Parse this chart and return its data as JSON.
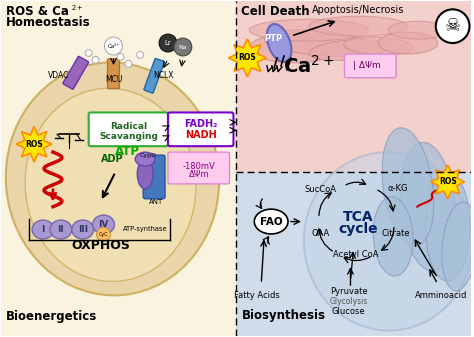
{
  "bg_color": "#ffffff",
  "left_bg": "#faf3e0",
  "right_top_bg": "#f2d0cc",
  "right_bot_bg": "#d0dcea",
  "mito_outer_color": "#e8cfa0",
  "mito_inner_color": "#f2e4b8",
  "mito_right_color": "#b8cce0",
  "label_homeostasis": "ROS & Ca",
  "label_homeostasis2": "Homeostasis",
  "label_bioenergetics": "Bioenergetics",
  "label_celldeath": "Cell Death",
  "label_biosynthesis": "Biosynthesis",
  "label_apoptosis": "Apoptosis/Necrosis",
  "label_oxphos": "OXPHOS",
  "label_tca1": "TCA",
  "label_tca2": "cycle",
  "label_fao": "FAO",
  "label_ptp": "PTP",
  "label_vdac": "VDAC",
  "label_mcu": "MCU",
  "label_nclx": "NCLX",
  "label_rad": "Radical\nScavanging",
  "label_fadh": "FADH₂",
  "label_nadh": "NADH",
  "label_adp": "ADP",
  "label_atp": "ATP",
  "label_cypd": "CypD",
  "label_ant": "ANT",
  "label_atpsyn": "ATP-synthase",
  "label_mv": "-180mV",
  "label_dvm": "ΔΨm",
  "label_ros": "ROS",
  "label_ca": "Ca",
  "label_sucCoa": "SucCoA",
  "label_akg": "α-KG",
  "label_oaa": "OAA",
  "label_citrate": "Citrate",
  "label_acetylcoa": "Acetyl CoA",
  "label_fatty": "Fatty Acids",
  "label_pyruvate": "Pyruvate",
  "label_glycolysis": "Glycolysis",
  "label_glucose": "Glucose",
  "label_amino": "Amminoacid",
  "ros_yellow": "#ffe600",
  "ros_orange": "#ff8c00",
  "atp_green": "#00aa00",
  "adp_green": "#006600",
  "fadh_purple": "#7700cc",
  "nadh_red": "#dd0000",
  "box_green": "#33aa33",
  "tca_blue": "#002266",
  "mv_pink_bg": "#ffccee",
  "mv_pink_border": "#dd88cc",
  "ca_pink_bg": "#ffccee",
  "ca_pink_border": "#dd88cc",
  "complex_color": "#a899d0",
  "complex_border": "#7766aa",
  "cyc_color": "#ffbb66",
  "vdac_color": "#9966bb",
  "mcu_color": "#e09030",
  "nclx_color": "#5599cc"
}
